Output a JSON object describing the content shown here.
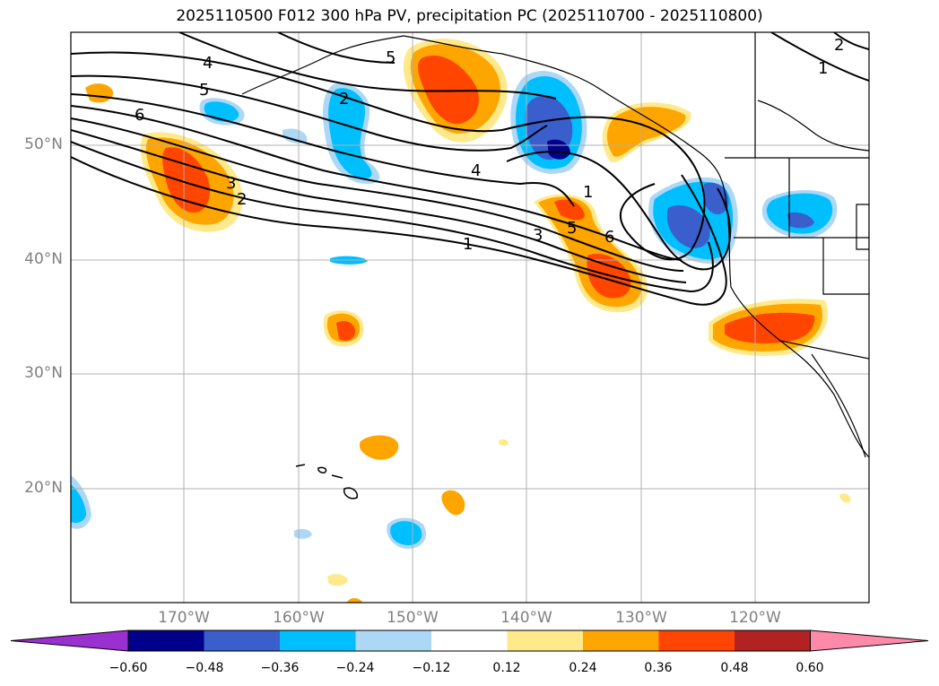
{
  "title": "2025110500 F012 300 hPa PV, precipitation PC (2025110700 - 2025110800)",
  "lat_labels": [
    "50°N",
    "40°N",
    "30°N",
    "20°N"
  ],
  "lon_labels": [
    "170°W",
    "160°W",
    "150°W",
    "140°W",
    "130°W",
    "120°W"
  ],
  "colorbar": {
    "ticks": [
      "−0.60",
      "−0.48",
      "−0.36",
      "−0.24",
      "−0.12",
      "0.12",
      "0.24",
      "0.36",
      "0.48",
      "0.60"
    ],
    "colors": [
      "#9b30d0",
      "#00008b",
      "#3a5fcd",
      "#00bfff",
      "#add8f5",
      "#ffffff",
      "#ffe98a",
      "#ffa500",
      "#ff4500",
      "#b22222",
      "#ff89a8"
    ]
  },
  "pv_contour_labels": [
    "1",
    "2",
    "3",
    "4",
    "5",
    "6"
  ],
  "colors": {
    "land_line": "#000000",
    "grid": "#b0b0b0"
  }
}
